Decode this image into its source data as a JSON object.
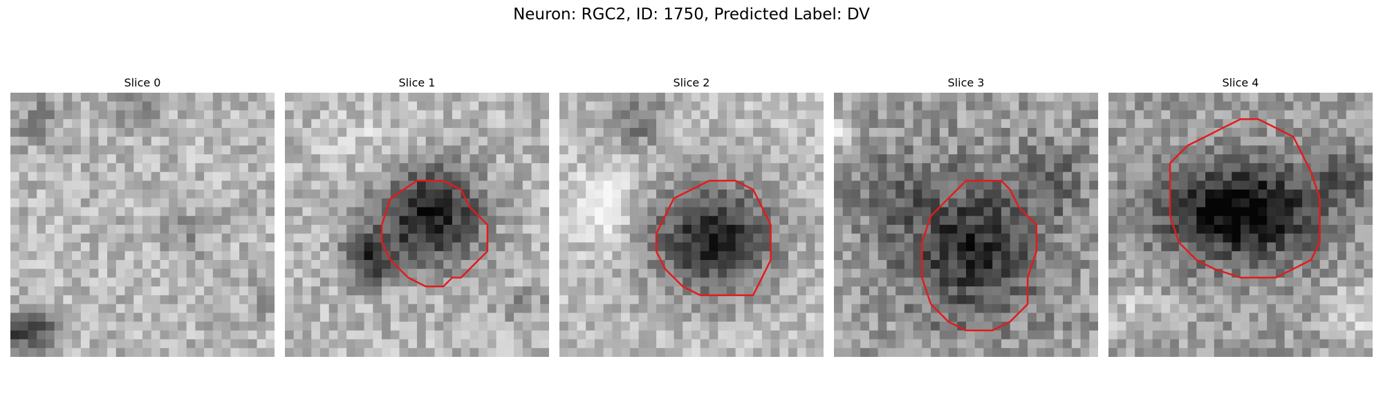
{
  "figure": {
    "title": "Neuron: RGC2, ID: 1750, Predicted Label: DV"
  },
  "slices": [
    {
      "title": "Slice 0"
    },
    {
      "title": "Slice 1"
    },
    {
      "title": "Slice 2"
    },
    {
      "title": "Slice 3"
    },
    {
      "title": "Slice 4"
    }
  ],
  "colors": {
    "contour": "#e41a1c",
    "colormap": "grayscale"
  }
}
